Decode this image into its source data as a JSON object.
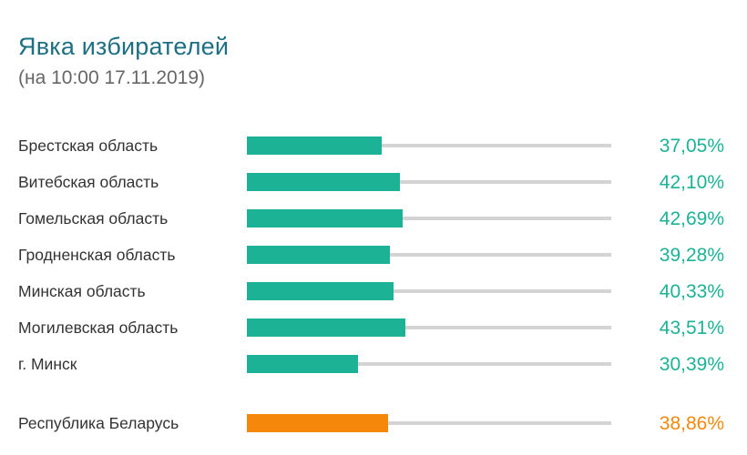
{
  "header": {
    "title": "Явка избирателей",
    "subtitle": "(на 10:00 17.11.2019)"
  },
  "colors": {
    "region_bar": "#1bb295",
    "total_bar": "#f5880a",
    "track": "#d4d4d4"
  },
  "chart_data": {
    "type": "bar",
    "orientation": "horizontal",
    "title": "Явка избирателей",
    "subtitle": "(на 10:00 17.11.2019)",
    "xlim": [
      0,
      100
    ],
    "grid": false,
    "categories": [
      "Брестская область",
      "Витебская область",
      "Гомельская область",
      "Гродненская область",
      "Минская область",
      "Могилевская область",
      "г. Минск",
      "Республика Беларусь"
    ],
    "values": [
      37.05,
      42.1,
      42.69,
      39.28,
      40.33,
      43.51,
      30.39,
      38.86
    ],
    "value_labels": [
      "37,05%",
      "42,10%",
      "42,69%",
      "39,28%",
      "40,33%",
      "43,51%",
      "30,39%",
      "38,86%"
    ],
    "highlighted": [
      "Республика Беларусь"
    ]
  }
}
